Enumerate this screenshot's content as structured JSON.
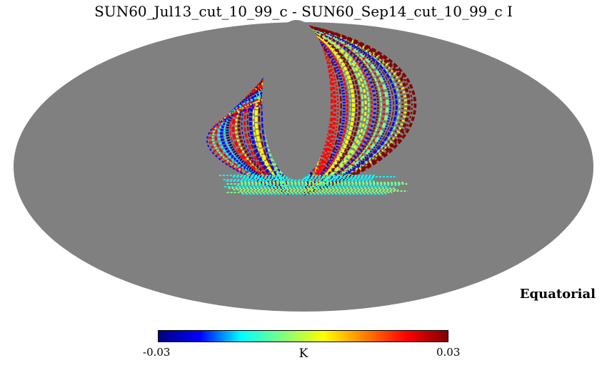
{
  "title": "SUN60_Jul13_cut_10_99_c - SUN60_Sep14_cut_10_99_c I",
  "coordinate_system": "Equatorial",
  "colorbar": {
    "min_label": "-0.03",
    "max_label": "0.03",
    "unit": "K",
    "colormap": "jet",
    "colors": [
      "#00007f",
      "#0000ff",
      "#00ffff",
      "#7fff7f",
      "#ffff00",
      "#ff7f00",
      "#ff0000",
      "#7f0000"
    ]
  },
  "map": {
    "projection": "mollweide",
    "background_color": "#808080",
    "masked_color": "#808080"
  }
}
